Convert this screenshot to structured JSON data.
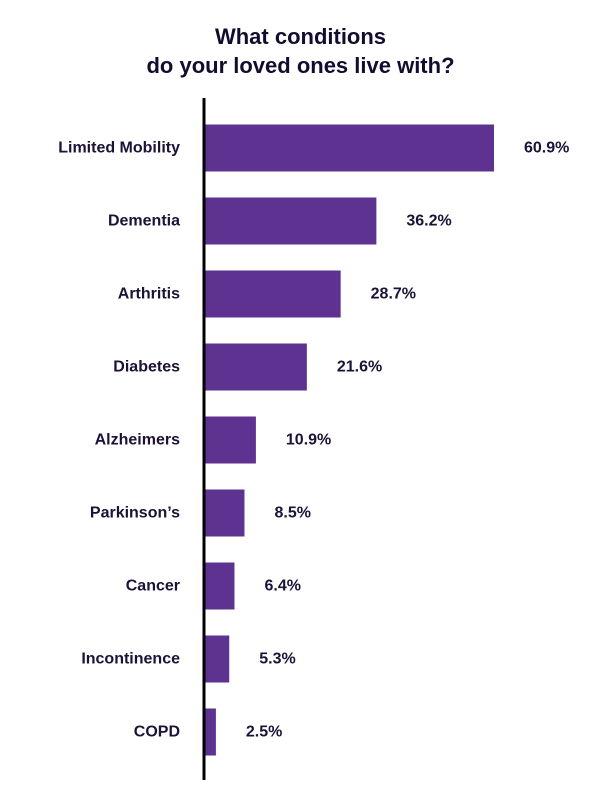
{
  "chart_data": {
    "type": "bar",
    "orientation": "horizontal",
    "title_lines": [
      "What conditions",
      "do your loved ones live with?"
    ],
    "categories": [
      "Limited Mobility",
      "Dementia",
      "Arthritis",
      "Diabetes",
      "Alzheimers",
      "Parkinson’s",
      "Cancer",
      "Incontinence",
      "COPD"
    ],
    "values": [
      60.9,
      36.2,
      28.7,
      21.6,
      10.9,
      8.5,
      6.4,
      5.3,
      2.5
    ],
    "value_labels": [
      "60.9%",
      "36.2%",
      "28.7%",
      "21.6%",
      "10.9%",
      "8.5%",
      "6.4%",
      "5.3%",
      "2.5%"
    ],
    "unit": "%",
    "xlim": [
      0,
      60.9
    ],
    "grid": false,
    "legend": "none",
    "colors": {
      "bar": "#5e3290",
      "text": "#1c1236",
      "axis": "#000000"
    }
  }
}
